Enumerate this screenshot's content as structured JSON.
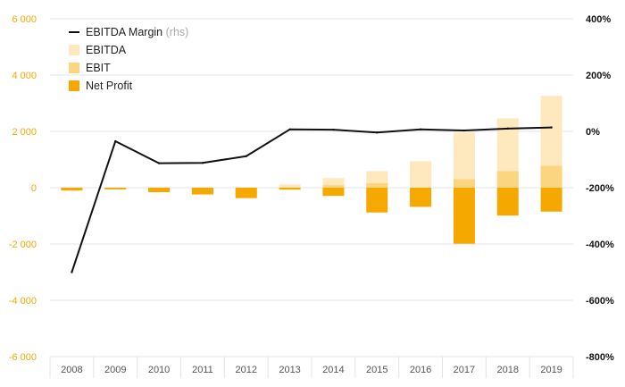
{
  "chart_data": {
    "type": "bar",
    "categories": [
      "2008",
      "2009",
      "2010",
      "2011",
      "2012",
      "2013",
      "2014",
      "2015",
      "2016",
      "2017",
      "2018",
      "2019"
    ],
    "series": [
      {
        "name": "EBITDA",
        "kind": "bar",
        "axis": "left",
        "color": "#fde9bd",
        "values": [
          -60,
          -30,
          -90,
          -130,
          -180,
          120,
          340,
          590,
          940,
          1960,
          2460,
          3260
        ]
      },
      {
        "name": "EBIT",
        "kind": "bar",
        "axis": "left",
        "color": "#fcd580",
        "values": [
          -80,
          -50,
          -120,
          -200,
          -300,
          -50,
          90,
          160,
          0,
          300,
          590,
          780
        ]
      },
      {
        "name": "Net Profit",
        "kind": "bar",
        "axis": "left",
        "color": "#f5a800",
        "values": [
          -100,
          -60,
          -160,
          -240,
          -370,
          -70,
          -290,
          -880,
          -680,
          -1990,
          -990,
          -850
        ]
      },
      {
        "name": "EBITDA Margin",
        "name_suffix": "(rhs)",
        "kind": "line",
        "axis": "right",
        "color": "#111111",
        "values": [
          -500,
          -35,
          -113,
          -112,
          -88,
          7,
          6,
          -4,
          7,
          3,
          10,
          14
        ]
      }
    ],
    "y_left": {
      "lim": [
        -6000,
        6000
      ],
      "ticks": [
        -6000,
        -4000,
        -2000,
        0,
        2000,
        4000,
        6000
      ],
      "tick_labels": [
        "-6 000",
        "-4 000",
        "-2 000",
        "0",
        "2 000",
        "4 000",
        "6 000"
      ]
    },
    "y_right": {
      "lim": [
        -800,
        400
      ],
      "ticks": [
        -800,
        -600,
        -400,
        -200,
        0,
        200,
        400
      ],
      "tick_labels": [
        "-800%",
        "-600%",
        "-400%",
        "-200%",
        "0%",
        "200%",
        "400%"
      ]
    },
    "grid": true,
    "legend_position": "top-left"
  }
}
